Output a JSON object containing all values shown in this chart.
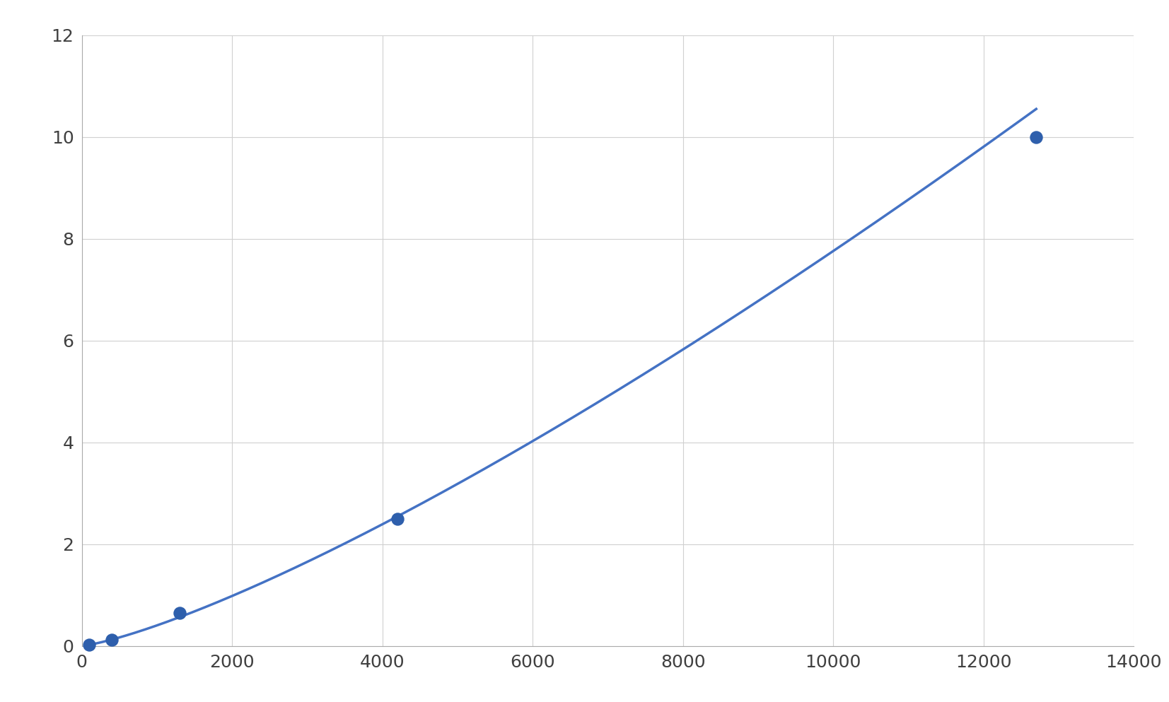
{
  "x_points": [
    100,
    400,
    1300,
    4200,
    12700
  ],
  "y_points": [
    0.02,
    0.12,
    0.65,
    2.5,
    10.0
  ],
  "line_color": "#4472C4",
  "marker_color": "#2E5FAC",
  "background_color": "#ffffff",
  "grid_color": "#d0d0d0",
  "xlim": [
    0,
    14000
  ],
  "ylim": [
    0,
    12
  ],
  "xticks": [
    0,
    2000,
    4000,
    6000,
    8000,
    10000,
    12000,
    14000
  ],
  "yticks": [
    0,
    2,
    4,
    6,
    8,
    10,
    12
  ],
  "tick_fontsize": 18,
  "figsize": [
    16.53,
    9.93
  ],
  "dpi": 100
}
